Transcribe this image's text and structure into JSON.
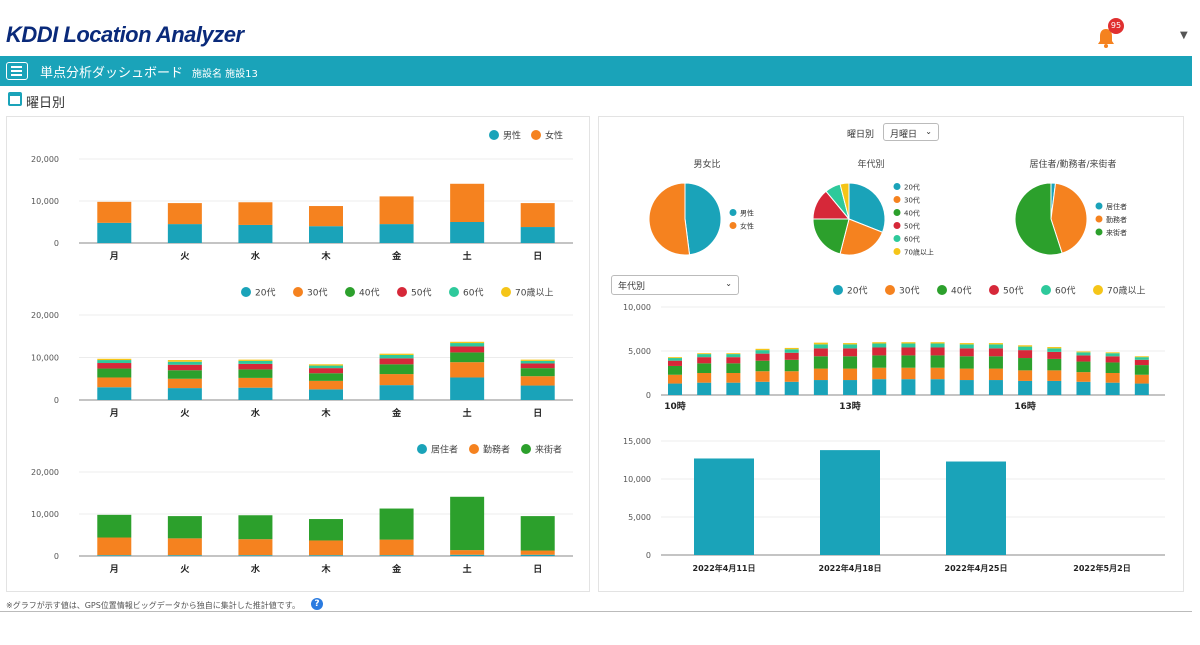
{
  "app": {
    "logo_kddi": "KDDI",
    "logo_rest": " Location Analyzer",
    "notification_count": "95",
    "menu_title": "単点分析ダッシュボード",
    "facility_label": "施設名 施設13",
    "section_title": "曜日別",
    "footnote": "※グラフが示す値は、GPS位置情報ビッグデータから独自に集計した推計値です。",
    "help": "?"
  },
  "controls": {
    "weekday_label": "曜日別",
    "weekday_select": "月曜日",
    "hourly_select": "年代別"
  },
  "colors": {
    "teal": "#1aa3b9",
    "orange": "#f5821f",
    "green": "#2ca02c",
    "red": "#d62839",
    "mint": "#2ec99b",
    "yellow": "#f5c518"
  },
  "chart_data": [
    {
      "type": "bar",
      "stacked": true,
      "categories": [
        "月",
        "火",
        "水",
        "木",
        "金",
        "土",
        "日"
      ],
      "ylim": [
        0,
        20000
      ],
      "yticks": [
        "20,000",
        "10,000",
        "0"
      ],
      "legend_position": "top-right",
      "series": [
        {
          "name": "男性",
          "color": "#1aa3b9",
          "values": [
            4800,
            4500,
            4300,
            4000,
            4500,
            5000,
            3800
          ]
        },
        {
          "name": "女性",
          "color": "#f5821f",
          "values": [
            5000,
            5000,
            5400,
            4800,
            6600,
            9100,
            5700
          ]
        }
      ]
    },
    {
      "type": "bar",
      "stacked": true,
      "categories": [
        "月",
        "火",
        "水",
        "木",
        "金",
        "土",
        "日"
      ],
      "ylim": [
        0,
        20000
      ],
      "yticks": [
        "20,000",
        "10,000",
        "0"
      ],
      "legend_position": "top-right",
      "series": [
        {
          "name": "20代",
          "color": "#1aa3b9",
          "values": [
            3000,
            2800,
            2900,
            2500,
            3500,
            5300,
            3400
          ]
        },
        {
          "name": "30代",
          "color": "#f5821f",
          "values": [
            2300,
            2200,
            2300,
            2000,
            2600,
            3600,
            2200
          ]
        },
        {
          "name": "40代",
          "color": "#2ca02c",
          "values": [
            2100,
            2000,
            2000,
            1800,
            2300,
            2300,
            1900
          ]
        },
        {
          "name": "50代",
          "color": "#d62839",
          "values": [
            1300,
            1300,
            1300,
            1200,
            1400,
            1400,
            1100
          ]
        },
        {
          "name": "60代",
          "color": "#2ec99b",
          "values": [
            700,
            700,
            700,
            600,
            800,
            800,
            600
          ]
        },
        {
          "name": "70歳以上",
          "color": "#f5c518",
          "values": [
            300,
            400,
            300,
            300,
            300,
            300,
            300
          ]
        }
      ]
    },
    {
      "type": "bar",
      "stacked": true,
      "categories": [
        "月",
        "火",
        "水",
        "木",
        "金",
        "土",
        "日"
      ],
      "ylim": [
        0,
        20000
      ],
      "yticks": [
        "20,000",
        "10,000",
        "0"
      ],
      "legend_position": "top-right",
      "series": [
        {
          "name": "居住者",
          "color": "#1aa3b9",
          "values": [
            200,
            200,
            200,
            200,
            200,
            300,
            300
          ]
        },
        {
          "name": "勤務者",
          "color": "#f5821f",
          "values": [
            4200,
            4000,
            3800,
            3500,
            3700,
            1100,
            1000
          ]
        },
        {
          "name": "来街者",
          "color": "#2ca02c",
          "values": [
            5400,
            5300,
            5700,
            5100,
            7400,
            12700,
            8200
          ]
        }
      ]
    },
    {
      "type": "pie",
      "title": "男女比",
      "slices": [
        {
          "name": "男性",
          "value": 48,
          "color": "#1aa3b9"
        },
        {
          "name": "女性",
          "value": 52,
          "color": "#f5821f"
        }
      ]
    },
    {
      "type": "pie",
      "title": "年代別",
      "slices": [
        {
          "name": "20代",
          "value": 31,
          "color": "#1aa3b9"
        },
        {
          "name": "30代",
          "value": 23,
          "color": "#f5821f"
        },
        {
          "name": "40代",
          "value": 21,
          "color": "#2ca02c"
        },
        {
          "name": "50代",
          "value": 14,
          "color": "#d62839"
        },
        {
          "name": "60代",
          "value": 7,
          "color": "#2ec99b"
        },
        {
          "name": "70歳以上",
          "value": 4,
          "color": "#f5c518"
        }
      ]
    },
    {
      "type": "pie",
      "title": "居住者/勤務者/来街者",
      "slices": [
        {
          "name": "居住者",
          "value": 2,
          "color": "#1aa3b9"
        },
        {
          "name": "勤務者",
          "value": 43,
          "color": "#f5821f"
        },
        {
          "name": "来街者",
          "value": 55,
          "color": "#2ca02c"
        }
      ]
    },
    {
      "type": "bar",
      "stacked": true,
      "xlabels": [
        "10時",
        "13時",
        "16時"
      ],
      "xlabel_positions": [
        0,
        6,
        12
      ],
      "bar_count": 17,
      "ylim": [
        0,
        10000
      ],
      "yticks": [
        "10,000",
        "5,000",
        "0"
      ],
      "legend_position": "top-right",
      "series": [
        {
          "name": "20代",
          "color": "#1aa3b9",
          "values": [
            1300,
            1400,
            1400,
            1500,
            1500,
            1700,
            1700,
            1800,
            1800,
            1800,
            1700,
            1700,
            1600,
            1600,
            1500,
            1400,
            1300
          ]
        },
        {
          "name": "30代",
          "color": "#f5821f",
          "values": [
            1000,
            1100,
            1100,
            1200,
            1200,
            1300,
            1300,
            1300,
            1300,
            1300,
            1300,
            1300,
            1200,
            1200,
            1100,
            1100,
            1000
          ]
        },
        {
          "name": "40代",
          "color": "#2ca02c",
          "values": [
            1000,
            1100,
            1100,
            1200,
            1300,
            1400,
            1400,
            1400,
            1400,
            1400,
            1400,
            1400,
            1400,
            1300,
            1200,
            1200,
            1100
          ]
        },
        {
          "name": "50代",
          "color": "#d62839",
          "values": [
            600,
            700,
            700,
            800,
            800,
            900,
            900,
            900,
            900,
            900,
            900,
            900,
            900,
            800,
            700,
            700,
            600
          ]
        },
        {
          "name": "60代",
          "color": "#2ec99b",
          "values": [
            300,
            350,
            350,
            400,
            400,
            450,
            450,
            450,
            450,
            450,
            450,
            450,
            400,
            400,
            350,
            350,
            300
          ]
        },
        {
          "name": "70歳以上",
          "color": "#f5c518",
          "values": [
            100,
            100,
            100,
            150,
            150,
            200,
            150,
            150,
            150,
            150,
            150,
            150,
            150,
            150,
            100,
            100,
            100
          ]
        }
      ]
    },
    {
      "type": "bar",
      "categories": [
        "2022年4月11日",
        "2022年4月18日",
        "2022年4月25日",
        "2022年5月2日"
      ],
      "values": [
        12700,
        13800,
        12300,
        0
      ],
      "ylim": [
        0,
        15000
      ],
      "yticks": [
        "15,000",
        "10,000",
        "5,000",
        "0"
      ],
      "color": "#1aa3b9"
    }
  ]
}
